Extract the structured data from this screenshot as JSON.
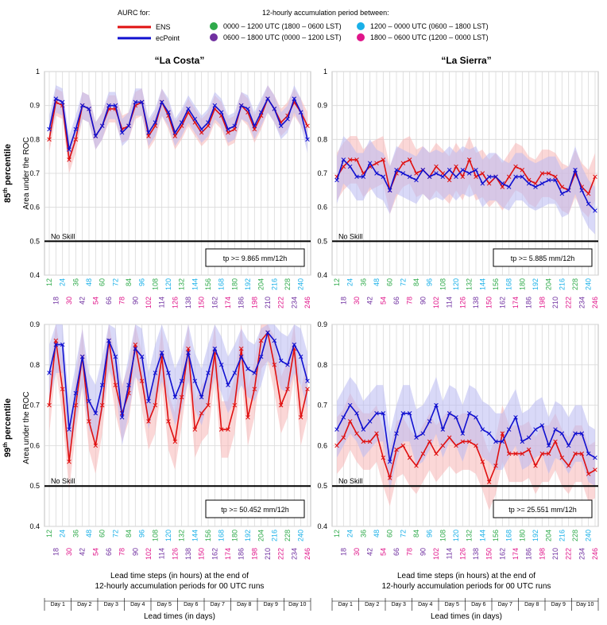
{
  "legend": {
    "aurc_title": "AURC for:",
    "ens_label": "ENS",
    "ecpoint_label": "ecPoint",
    "period_title": "12-hourly accumulation period between:",
    "periods": [
      {
        "label": "0000 – 1200 UTC (1800 – 0600 LST)",
        "color": "#2eaa4a"
      },
      {
        "label": "0600 – 1800 UTC (0000 – 1200 LST)",
        "color": "#7030a0"
      },
      {
        "label": "1200 – 0000 UTC (0600 – 1800 LST)",
        "color": "#1ab0e8"
      },
      {
        "label": "1800 – 0600 UTC (1200 – 0000 LST)",
        "color": "#e0158a"
      }
    ]
  },
  "colors": {
    "ens": "#e01010",
    "ecpoint": "#1010d0",
    "ens_band": "#f7b7b7",
    "ecpoint_band": "#b9b9f2"
  },
  "column_titles": [
    "“La Costa”",
    "“La Sierra”"
  ],
  "row_labels": [
    "85",
    "99"
  ],
  "row_label_sup": "th",
  "row_label_suffix": " percentile",
  "ylabel": "Area under the ROC",
  "no_skill_label": "No Skill",
  "xlabel_line1": "Lead time steps (in hours) at the end of",
  "xlabel_line2": "12-hourly accumulation periods for 00 UTC runs",
  "days_label": "Lead times (in days)",
  "days": [
    "Day 1",
    "Day 2",
    "Day 3",
    "Day 4",
    "Day 5",
    "Day 6",
    "Day 7",
    "Day 8",
    "Day 9",
    "Day 10"
  ],
  "yticks": [
    "0.4",
    "0.5",
    "0.6",
    "0.7",
    "0.8",
    "0.9",
    "1"
  ],
  "x_top": [
    "12",
    "24",
    "36",
    "48",
    "60",
    "72",
    "84",
    "96",
    "108",
    "120",
    "132",
    "144",
    "156",
    "168",
    "180",
    "192",
    "204",
    "216",
    "228",
    "240"
  ],
  "x_bottom": [
    "18",
    "30",
    "42",
    "54",
    "66",
    "78",
    "90",
    "102",
    "114",
    "126",
    "138",
    "150",
    "162",
    "174",
    "186",
    "198",
    "210",
    "222",
    "234",
    "246"
  ],
  "chart_data": [
    {
      "type": "line",
      "title": "“La Costa”",
      "percentile": "85th",
      "threshold": "tp >= 9.865 mm/12h",
      "x": [
        12,
        18,
        24,
        30,
        36,
        42,
        48,
        54,
        60,
        66,
        72,
        78,
        84,
        90,
        96,
        102,
        108,
        114,
        120,
        126,
        132,
        138,
        144,
        150,
        156,
        162,
        168,
        174,
        180,
        186,
        192,
        198,
        204,
        210,
        216,
        222,
        228,
        234,
        240,
        246
      ],
      "ylim": [
        0.4,
        1.0
      ],
      "series": [
        {
          "name": "ENS",
          "values": [
            0.8,
            0.91,
            0.9,
            0.74,
            0.8,
            0.9,
            0.89,
            0.81,
            0.84,
            0.89,
            0.89,
            0.83,
            0.84,
            0.9,
            0.91,
            0.81,
            0.84,
            0.91,
            0.87,
            0.81,
            0.84,
            0.88,
            0.85,
            0.82,
            0.84,
            0.89,
            0.87,
            0.82,
            0.83,
            0.9,
            0.88,
            0.83,
            0.87,
            0.92,
            0.89,
            0.85,
            0.87,
            0.91,
            0.88,
            0.84
          ]
        },
        {
          "name": "ecPoint",
          "values": [
            0.83,
            0.92,
            0.91,
            0.77,
            0.83,
            0.9,
            0.89,
            0.81,
            0.84,
            0.9,
            0.9,
            0.82,
            0.84,
            0.91,
            0.91,
            0.82,
            0.85,
            0.91,
            0.88,
            0.82,
            0.85,
            0.89,
            0.86,
            0.83,
            0.85,
            0.9,
            0.88,
            0.83,
            0.84,
            0.9,
            0.89,
            0.84,
            0.88,
            0.92,
            0.89,
            0.84,
            0.86,
            0.92,
            0.88,
            0.8
          ]
        }
      ]
    },
    {
      "type": "line",
      "title": "“La Sierra”",
      "percentile": "85th",
      "threshold": "tp >= 5.885 mm/12h",
      "x": [
        12,
        18,
        24,
        30,
        36,
        42,
        48,
        54,
        60,
        66,
        72,
        78,
        84,
        90,
        96,
        102,
        108,
        114,
        120,
        126,
        132,
        138,
        144,
        150,
        156,
        162,
        168,
        174,
        180,
        186,
        192,
        198,
        204,
        210,
        216,
        222,
        228,
        234,
        240,
        246
      ],
      "ylim": [
        0.4,
        1.0
      ],
      "series": [
        {
          "name": "ENS",
          "values": [
            0.69,
            0.72,
            0.74,
            0.74,
            0.7,
            0.72,
            0.73,
            0.74,
            0.65,
            0.7,
            0.73,
            0.74,
            0.7,
            0.71,
            0.69,
            0.72,
            0.7,
            0.68,
            0.72,
            0.69,
            0.74,
            0.69,
            0.7,
            0.67,
            0.69,
            0.66,
            0.69,
            0.72,
            0.71,
            0.68,
            0.67,
            0.7,
            0.7,
            0.69,
            0.66,
            0.65,
            0.7,
            0.66,
            0.64,
            0.69
          ]
        },
        {
          "name": "ecPoint",
          "values": [
            0.68,
            0.74,
            0.72,
            0.69,
            0.69,
            0.73,
            0.7,
            0.69,
            0.65,
            0.71,
            0.7,
            0.69,
            0.68,
            0.71,
            0.69,
            0.7,
            0.69,
            0.71,
            0.69,
            0.71,
            0.7,
            0.71,
            0.67,
            0.69,
            0.69,
            0.67,
            0.66,
            0.69,
            0.69,
            0.67,
            0.66,
            0.67,
            0.68,
            0.68,
            0.64,
            0.65,
            0.71,
            0.65,
            0.61,
            0.59
          ]
        }
      ]
    },
    {
      "type": "line",
      "title": "“La Costa”",
      "percentile": "99th",
      "threshold": "tp >= 50.452 mm/12h",
      "x": [
        12,
        18,
        24,
        30,
        36,
        42,
        48,
        54,
        60,
        66,
        72,
        78,
        84,
        90,
        96,
        102,
        108,
        114,
        120,
        126,
        132,
        138,
        144,
        150,
        156,
        162,
        168,
        174,
        180,
        186,
        192,
        198,
        204,
        210,
        216,
        222,
        228,
        234,
        240,
        246
      ],
      "ylim": [
        0.4,
        0.95
      ],
      "series": [
        {
          "name": "ENS",
          "values": [
            0.7,
            0.86,
            0.74,
            0.56,
            0.7,
            0.82,
            0.66,
            0.6,
            0.7,
            0.86,
            0.75,
            0.68,
            0.73,
            0.85,
            0.76,
            0.66,
            0.7,
            0.82,
            0.66,
            0.61,
            0.72,
            0.84,
            0.64,
            0.68,
            0.7,
            0.83,
            0.64,
            0.64,
            0.7,
            0.84,
            0.67,
            0.74,
            0.86,
            0.88,
            0.8,
            0.7,
            0.74,
            0.84,
            0.67,
            0.74
          ]
        },
        {
          "name": "ecPoint",
          "values": [
            0.78,
            0.85,
            0.85,
            0.64,
            0.73,
            0.82,
            0.71,
            0.68,
            0.75,
            0.86,
            0.82,
            0.67,
            0.75,
            0.84,
            0.82,
            0.71,
            0.78,
            0.83,
            0.78,
            0.72,
            0.76,
            0.83,
            0.76,
            0.72,
            0.78,
            0.84,
            0.8,
            0.75,
            0.78,
            0.82,
            0.79,
            0.78,
            0.82,
            0.88,
            0.86,
            0.81,
            0.8,
            0.85,
            0.82,
            0.76
          ]
        }
      ]
    },
    {
      "type": "line",
      "title": "“La Sierra”",
      "percentile": "99th",
      "threshold": "tp >= 25.551 mm/12h",
      "x": [
        12,
        18,
        24,
        30,
        36,
        42,
        48,
        54,
        60,
        66,
        72,
        78,
        84,
        90,
        96,
        102,
        108,
        114,
        120,
        126,
        132,
        138,
        144,
        150,
        156,
        162,
        168,
        174,
        180,
        186,
        192,
        198,
        204,
        210,
        216,
        222,
        228,
        234,
        240,
        246
      ],
      "ylim": [
        0.4,
        0.95
      ],
      "series": [
        {
          "name": "ENS",
          "values": [
            0.6,
            0.62,
            0.66,
            0.63,
            0.61,
            0.61,
            0.63,
            0.57,
            0.52,
            0.59,
            0.6,
            0.57,
            0.55,
            0.58,
            0.61,
            0.58,
            0.6,
            0.62,
            0.6,
            0.61,
            0.61,
            0.6,
            0.56,
            0.51,
            0.55,
            0.63,
            0.58,
            0.58,
            0.58,
            0.59,
            0.55,
            0.58,
            0.58,
            0.61,
            0.57,
            0.55,
            0.58,
            0.58,
            0.53,
            0.54
          ]
        },
        {
          "name": "ecPoint",
          "values": [
            0.64,
            0.67,
            0.7,
            0.68,
            0.64,
            0.66,
            0.68,
            0.68,
            0.56,
            0.63,
            0.68,
            0.68,
            0.62,
            0.63,
            0.66,
            0.7,
            0.64,
            0.68,
            0.67,
            0.63,
            0.68,
            0.67,
            0.64,
            0.63,
            0.61,
            0.61,
            0.64,
            0.67,
            0.61,
            0.62,
            0.64,
            0.65,
            0.6,
            0.64,
            0.63,
            0.6,
            0.63,
            0.63,
            0.58,
            0.57
          ]
        }
      ]
    }
  ]
}
